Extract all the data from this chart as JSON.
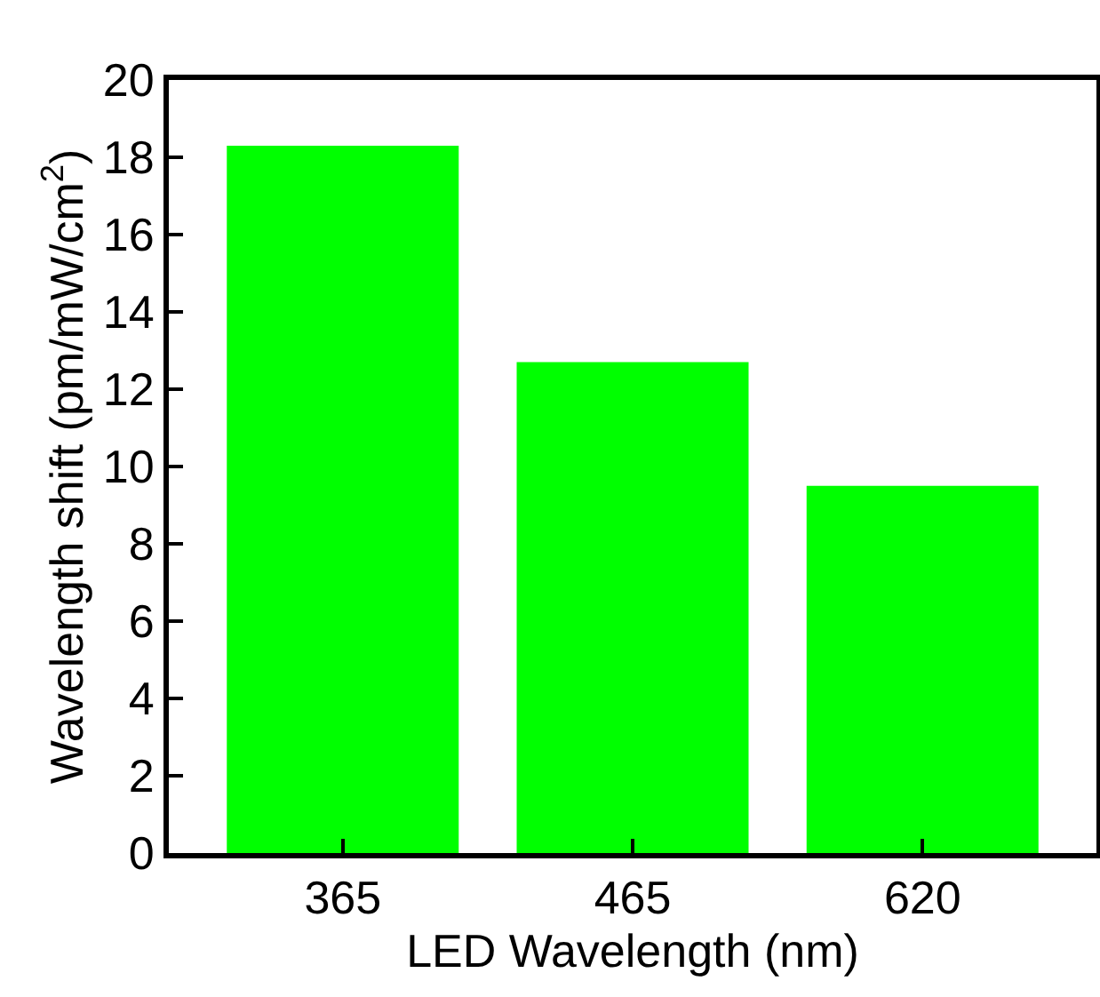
{
  "chart_data": {
    "type": "bar",
    "xlabel": "LED Wavelength (nm)",
    "ylabel": "Wavelength shift (pm/mW/cm$^{2}$)",
    "categories": [
      "365",
      "465",
      "620"
    ],
    "values": [
      18.3,
      12.7,
      9.5
    ],
    "color": "#00ff00",
    "ylim": [
      0,
      20
    ],
    "yticks": [
      0,
      2,
      4,
      6,
      8,
      10,
      12,
      14,
      16,
      18,
      20
    ],
    "grid": false
  }
}
